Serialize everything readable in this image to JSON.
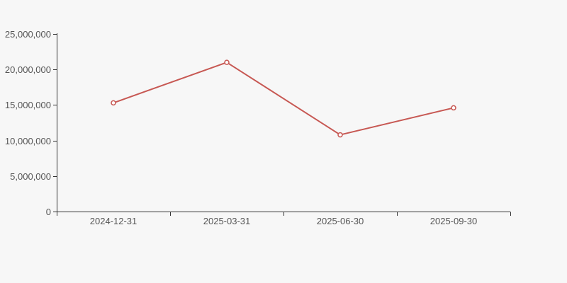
{
  "page": {
    "background_color": "#f7f7f7"
  },
  "chart_data": {
    "type": "line",
    "title": "",
    "xlabel": "",
    "ylabel": "",
    "categories": [
      "2024-12-31",
      "2025-03-31",
      "2025-06-30",
      "2025-09-30"
    ],
    "series": [
      {
        "values": [
          15300000,
          21000000,
          10800000,
          14600000
        ],
        "color": "#c75853",
        "marker": "empty-circle"
      }
    ],
    "ylim": [
      0,
      25000000
    ],
    "y_ticks": [
      0,
      5000000,
      10000000,
      15000000,
      20000000,
      25000000
    ],
    "y_tick_labels": [
      "0",
      "5,000,000",
      "10,000,000",
      "15,000,000",
      "20,000,000",
      "25,000,000"
    ],
    "grid": false,
    "legend": false,
    "axis_color": "#333333",
    "tick_label_color": "#555555"
  }
}
